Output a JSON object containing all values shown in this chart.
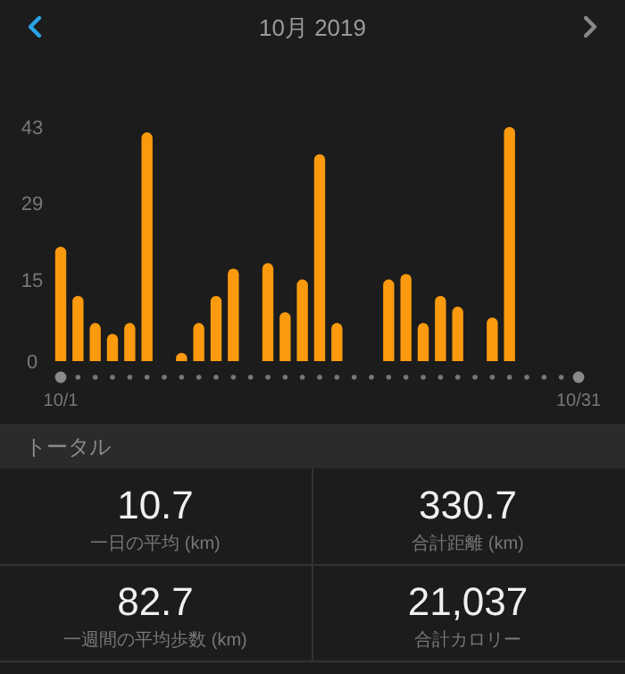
{
  "chart_data": {
    "type": "bar",
    "title": "10月 2019",
    "categories": [
      "10/1",
      null,
      null,
      null,
      null,
      null,
      null,
      null,
      null,
      null,
      null,
      null,
      null,
      null,
      null,
      null,
      null,
      null,
      null,
      null,
      null,
      null,
      null,
      null,
      null,
      null,
      null,
      null,
      null,
      null,
      "10/31"
    ],
    "values": [
      21,
      12,
      7,
      5,
      7,
      42,
      null,
      1,
      7,
      12,
      17,
      null,
      18,
      9,
      15,
      38,
      7,
      null,
      null,
      15,
      16,
      7,
      12,
      10,
      null,
      8,
      43,
      null,
      null,
      null,
      null
    ],
    "color": "#fb9a0e",
    "ylim": [
      0,
      43
    ],
    "yticks": [
      0,
      15,
      29,
      43
    ],
    "grid": false,
    "annotations": [
      "トータル",
      "10.7",
      "一日の平均 (km)",
      "330.7",
      "合計距離 (km)",
      "82.7",
      "一週間の平均歩数 (km)",
      "21,037",
      "合計カロリー"
    ]
  }
}
